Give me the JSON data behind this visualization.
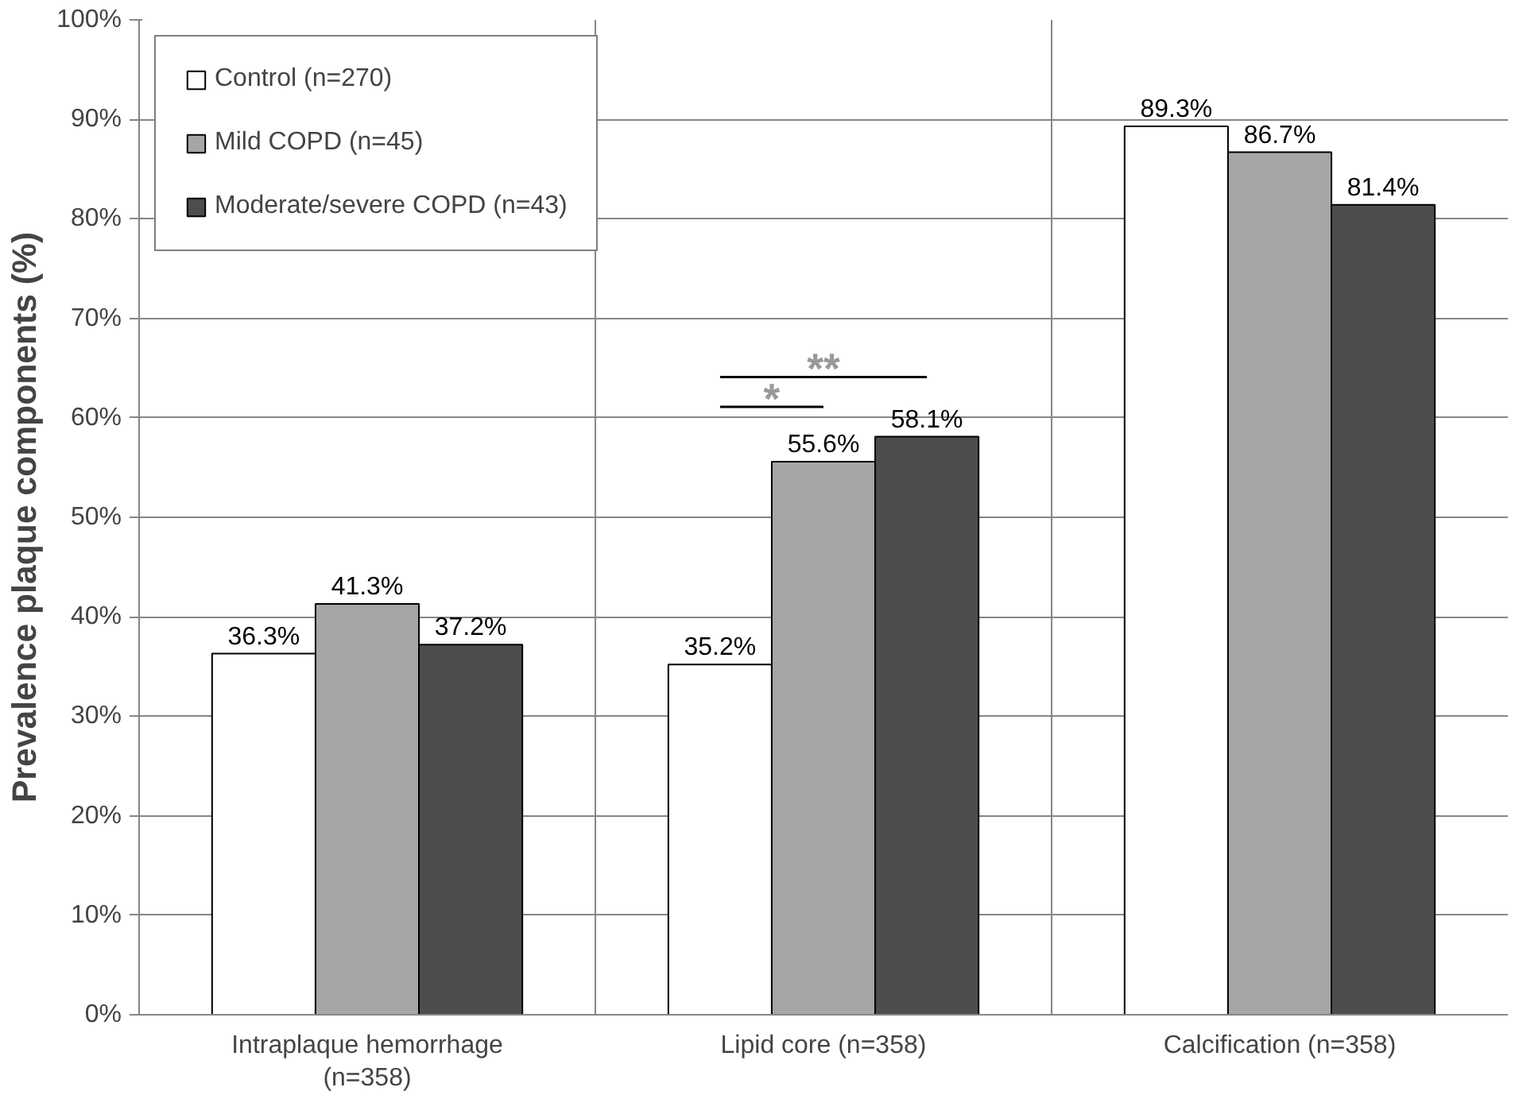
{
  "chart_data": {
    "type": "bar",
    "ylabel": "Prevalence plaque components (%)",
    "categories": [
      "Intraplaque hemorrhage (n=358)",
      "Lipid core (n=358)",
      "Calcification (n=358)"
    ],
    "series": [
      {
        "name": "Control (n=270)",
        "color": "#ffffff",
        "values": [
          36.3,
          35.2,
          89.3
        ]
      },
      {
        "name": "Mild COPD (n=45)",
        "color": "#a6a6a6",
        "values": [
          41.3,
          55.6,
          86.7
        ]
      },
      {
        "name": "Moderate/severe COPD (n=43)",
        "color": "#4d4d4d",
        "values": [
          37.2,
          58.1,
          81.4
        ]
      }
    ],
    "ylim": [
      0,
      100
    ],
    "yticks": [
      {
        "value": 0,
        "label": "0%"
      },
      {
        "value": 10,
        "label": "10%"
      },
      {
        "value": 20,
        "label": "20%"
      },
      {
        "value": 30,
        "label": "30%"
      },
      {
        "value": 40,
        "label": "40%"
      },
      {
        "value": 50,
        "label": "50%"
      },
      {
        "value": 60,
        "label": "60%"
      },
      {
        "value": 70,
        "label": "70%"
      },
      {
        "value": 80,
        "label": "80%"
      },
      {
        "value": 90,
        "label": "90%"
      },
      {
        "value": 100,
        "label": "100%"
      }
    ],
    "value_labels": [
      [
        "36.3%",
        "35.2%",
        "89.3%"
      ],
      [
        "41.3%",
        "55.6%",
        "86.7%"
      ],
      [
        "37.2%",
        "58.1%",
        "81.4%"
      ]
    ],
    "annotations": [
      "*",
      "**"
    ],
    "grid": true,
    "legend": "top left"
  }
}
